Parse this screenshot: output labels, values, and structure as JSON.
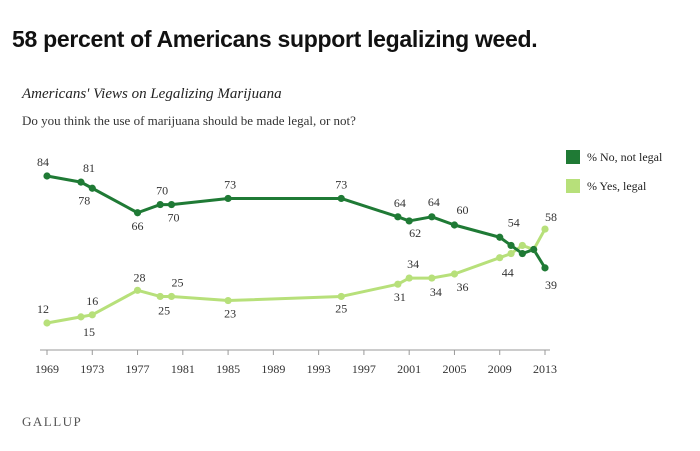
{
  "headline": "58 percent of Americans support legalizing weed.",
  "source": "GALLUP",
  "chart_data": {
    "type": "line",
    "title": "Americans' Views on Legalizing Marijuana",
    "subtitle": "Do you think the use of marijuana should be made legal, or not?",
    "xlabel": "",
    "ylabel": "",
    "xlim": [
      1969,
      2013.5
    ],
    "ylim": [
      0,
      100
    ],
    "grid": false,
    "legend_position": "right",
    "x_ticks": [
      "1969",
      "1973",
      "1977",
      "1981",
      "1985",
      "1989",
      "1993",
      "1997",
      "2001",
      "2005",
      "2009",
      "2013"
    ],
    "series": [
      {
        "name": "% No, not legal",
        "color": "#1f7a35",
        "x": [
          1969,
          1972,
          1973,
          1977,
          1979,
          1980,
          1985,
          1995,
          2000,
          2001,
          2003,
          2005,
          2009,
          2010,
          2011,
          2012,
          2013
        ],
        "values": [
          84,
          81,
          78,
          66,
          70,
          70,
          73,
          73,
          64,
          62,
          64,
          60,
          54,
          50,
          46,
          48,
          39
        ],
        "labels": [
          "84",
          "81",
          "78",
          "66",
          "70",
          "70",
          "73",
          "73",
          "64",
          "62",
          "64",
          "60",
          "54",
          "",
          "",
          "",
          "39"
        ]
      },
      {
        "name": "% Yes, legal",
        "color": "#b7e07a",
        "x": [
          1969,
          1972,
          1973,
          1977,
          1979,
          1980,
          1985,
          1995,
          2000,
          2001,
          2003,
          2005,
          2009,
          2010,
          2011,
          2012,
          2013
        ],
        "values": [
          12,
          15,
          16,
          28,
          25,
          25,
          23,
          25,
          31,
          34,
          34,
          36,
          44,
          46,
          50,
          48,
          58
        ],
        "labels": [
          "12",
          "15",
          "16",
          "28",
          "25",
          "25",
          "23",
          "25",
          "31",
          "34",
          "34",
          "36",
          "44",
          "",
          "",
          "",
          "58"
        ]
      }
    ]
  }
}
